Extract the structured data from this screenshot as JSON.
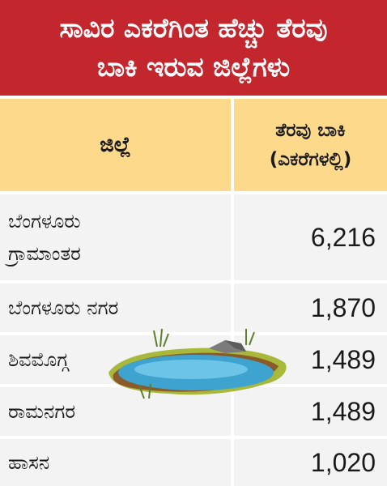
{
  "title": {
    "line1": "ಸಾವಿರ ಎಕರೆಗಿಂತ ಹೆಚ್ಚು ತೆರವು",
    "line2": "ಬಾಕಿ ಇರುವ ಜಿಲ್ಲೆಗಳು"
  },
  "header": {
    "district": "ಜಿಲ್ಲೆ",
    "pending_line1": "ತೆರವು ಬಾಕಿ",
    "pending_line2": "(ಎಕರೆಗಳಲ್ಲಿ)"
  },
  "rows": [
    {
      "name_line1": "ಬೆಂಗಳೂರು",
      "name_line2": "ಗ್ರಾಮಾಂತರ",
      "value": "6,216"
    },
    {
      "name_line1": "ಬೆಂಗಳೂರು ನಗರ",
      "value": "1,870"
    },
    {
      "name_line1": "ಶಿವಮೊಗ್ಗ",
      "value": "1,489"
    },
    {
      "name_line1": "ರಾಮನಗರ",
      "value": "1,489"
    },
    {
      "name_line1": "ಹಾಸನ",
      "value": "1,020"
    }
  ],
  "colors": {
    "title_bg": "#c4262e",
    "header_bg": "#fdd98b",
    "row_bg": "#f3f3f3"
  },
  "illustration": "pond-illustration"
}
